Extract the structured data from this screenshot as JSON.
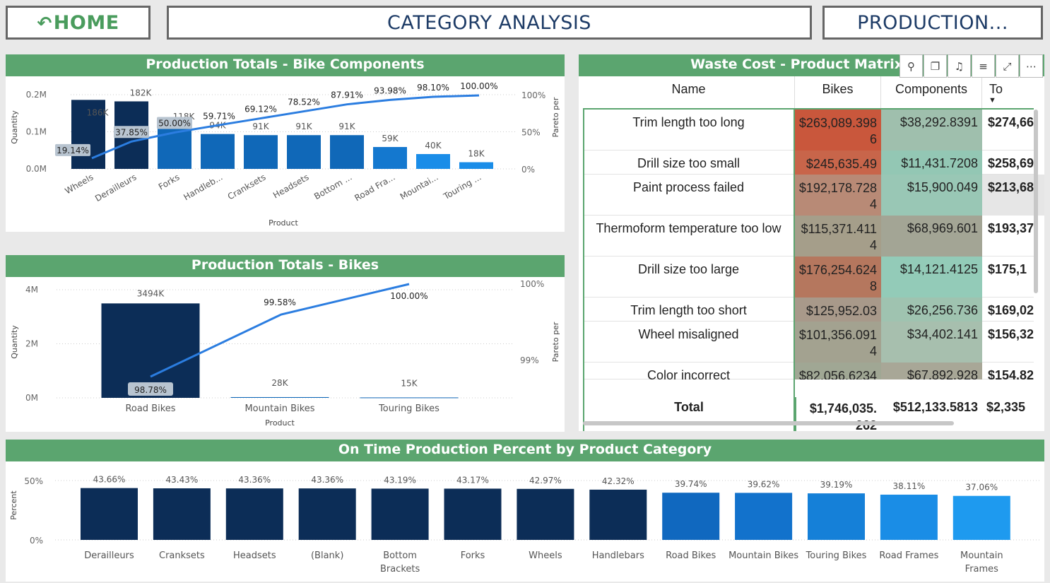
{
  "nav": {
    "home_label": "HOME",
    "home_icon": "undo-arrow-icon",
    "title": "CATEGORY ANALYSIS",
    "production_label": "PRODUCTION..."
  },
  "colors": {
    "header_green": "#5ba56f",
    "navy": "#0c2d57",
    "mid_blue": "#1068b8",
    "light_blue": "#1a8de8",
    "pareto_line": "#2b7de0",
    "nav_text_navy": "#1d3b66",
    "home_green": "#4a9c5d"
  },
  "chart_data": [
    {
      "type": "bar",
      "title": "Production Totals - Bike Components",
      "xlabel": "Product",
      "ylabel": "Quantity",
      "y2label": "Pareto per",
      "categories": [
        "Wheels",
        "Derailleurs",
        "Forks",
        "Handleb...",
        "Cranksets",
        "Headsets",
        "Bottom ...",
        "Road Fra...",
        "Mountai...",
        "Touring ..."
      ],
      "values_labels": [
        "186K",
        "182K",
        "118K",
        "94K",
        "91K",
        "91K",
        "91K",
        "59K",
        "40K",
        "18K"
      ],
      "values": [
        186000,
        182000,
        118000,
        94000,
        91000,
        91000,
        91000,
        59000,
        40000,
        18000
      ],
      "pareto_labels": [
        "19.14%",
        "37.85%",
        "50.00%",
        "59.71%",
        "69.12%",
        "78.52%",
        "87.91%",
        "93.98%",
        "98.10%",
        "100.00%"
      ],
      "pareto": [
        19.14,
        37.85,
        50.0,
        59.71,
        69.12,
        78.52,
        87.91,
        93.98,
        98.1,
        100.0
      ],
      "yticks": [
        "0.0M",
        "0.1M",
        "0.2M"
      ],
      "ylim": [
        0,
        200000
      ],
      "y2ticks": [
        "0%",
        "50%",
        "100%"
      ],
      "y2lim": [
        0,
        100
      ]
    },
    {
      "type": "bar",
      "title": "Production Totals - Bikes",
      "xlabel": "Product",
      "ylabel": "Quantity",
      "y2label": "Pareto per",
      "categories": [
        "Road Bikes",
        "Mountain Bikes",
        "Touring Bikes"
      ],
      "values_labels": [
        "3494K",
        "28K",
        "15K"
      ],
      "values": [
        3494000,
        28000,
        15000
      ],
      "pareto_labels": [
        "98.78%",
        "99.58%",
        "100.00%"
      ],
      "pareto": [
        98.78,
        99.58,
        100.0
      ],
      "yticks": [
        "0M",
        "2M",
        "4M"
      ],
      "ylim": [
        0,
        4000000
      ],
      "y2ticks": [
        "99%",
        "100%"
      ],
      "y2lim": [
        98.5,
        100.0
      ]
    },
    {
      "type": "bar",
      "title": "On Time Production Percent by Product Category",
      "ylabel": "Percent",
      "categories": [
        "Derailleurs",
        "Cranksets",
        "Headsets",
        "(Blank)",
        "Bottom Brackets",
        "Forks",
        "Wheels",
        "Handlebars",
        "Road Bikes",
        "Mountain Bikes",
        "Touring Bikes",
        "Road Frames",
        "Mountain Frames"
      ],
      "values_labels": [
        "43.66%",
        "43.43%",
        "43.36%",
        "43.36%",
        "43.19%",
        "43.17%",
        "42.97%",
        "42.32%",
        "39.74%",
        "39.62%",
        "39.19%",
        "38.11%",
        "37.06%"
      ],
      "values": [
        43.66,
        43.43,
        43.36,
        43.36,
        43.19,
        43.17,
        42.97,
        42.32,
        39.74,
        39.62,
        39.19,
        38.11,
        37.06
      ],
      "yticks": [
        "0%",
        "50%"
      ],
      "ylim": [
        0,
        50
      ]
    }
  ],
  "matrix": {
    "title": "Waste Cost - Product Matrix",
    "columns": [
      "Name",
      "Bikes",
      "Components",
      "To"
    ],
    "rows": [
      {
        "name": "Trim length too long",
        "bikes": [
          "$263,089.398",
          "6"
        ],
        "components": "$38,292.8391",
        "total": "$274,66",
        "bike_color": "#c9573c",
        "comp_color": "#9fbfad"
      },
      {
        "name": "Drill size too small",
        "bikes": [
          "$245,635.49"
        ],
        "components": "$11,431.7208",
        "total": "$258,69",
        "bike_color": "#c8654a",
        "comp_color": "#93c7b4"
      },
      {
        "name": "Paint process failed",
        "bikes": [
          "$192,178.728",
          "4"
        ],
        "components": "$15,900.049",
        "total": "$213,68",
        "bike_color": "#b88a76",
        "comp_color": "#99c7b5"
      },
      {
        "name": "Thermoform temperature too low",
        "bikes": [
          "$115,371.411",
          "4"
        ],
        "components": "$68,969.601",
        "total": "$193,37",
        "bike_color": "#a59e8a",
        "comp_color": "#a3a595"
      },
      {
        "name": "Drill size too large",
        "bikes": [
          "$176,254.624",
          "8"
        ],
        "components": "$14,121.4125",
        "total": "$175,1",
        "bike_color": "#b5775e",
        "comp_color": "#93cbb8"
      },
      {
        "name": "Trim length too short",
        "bikes": [
          "$125,952.03"
        ],
        "components": "$26,256.736",
        "total": "$169,02",
        "bike_color": "#a8998a",
        "comp_color": "#9fc3b0"
      },
      {
        "name": "Wheel misaligned",
        "bikes": [
          "$101,356.091",
          "4"
        ],
        "components": "$34,402.141",
        "total": "$156,32",
        "bike_color": "#a3a290",
        "comp_color": "#a7bfae"
      },
      {
        "name": "Color incorrect",
        "bikes": [
          "$82,056.6234"
        ],
        "components": "$67,892.928",
        "total": "$154,82",
        "bike_color": "#a0a794",
        "comp_color": "#a8a797"
      }
    ],
    "total": {
      "label": "Total",
      "bikes": [
        "$1,746,035.",
        "262"
      ],
      "components": "$512,133.5813",
      "total": "$2,335"
    },
    "toolbar": [
      "pin-icon",
      "copy-icon",
      "bell-icon",
      "filter-icon",
      "focus-mode-icon",
      "more-options-icon"
    ]
  }
}
